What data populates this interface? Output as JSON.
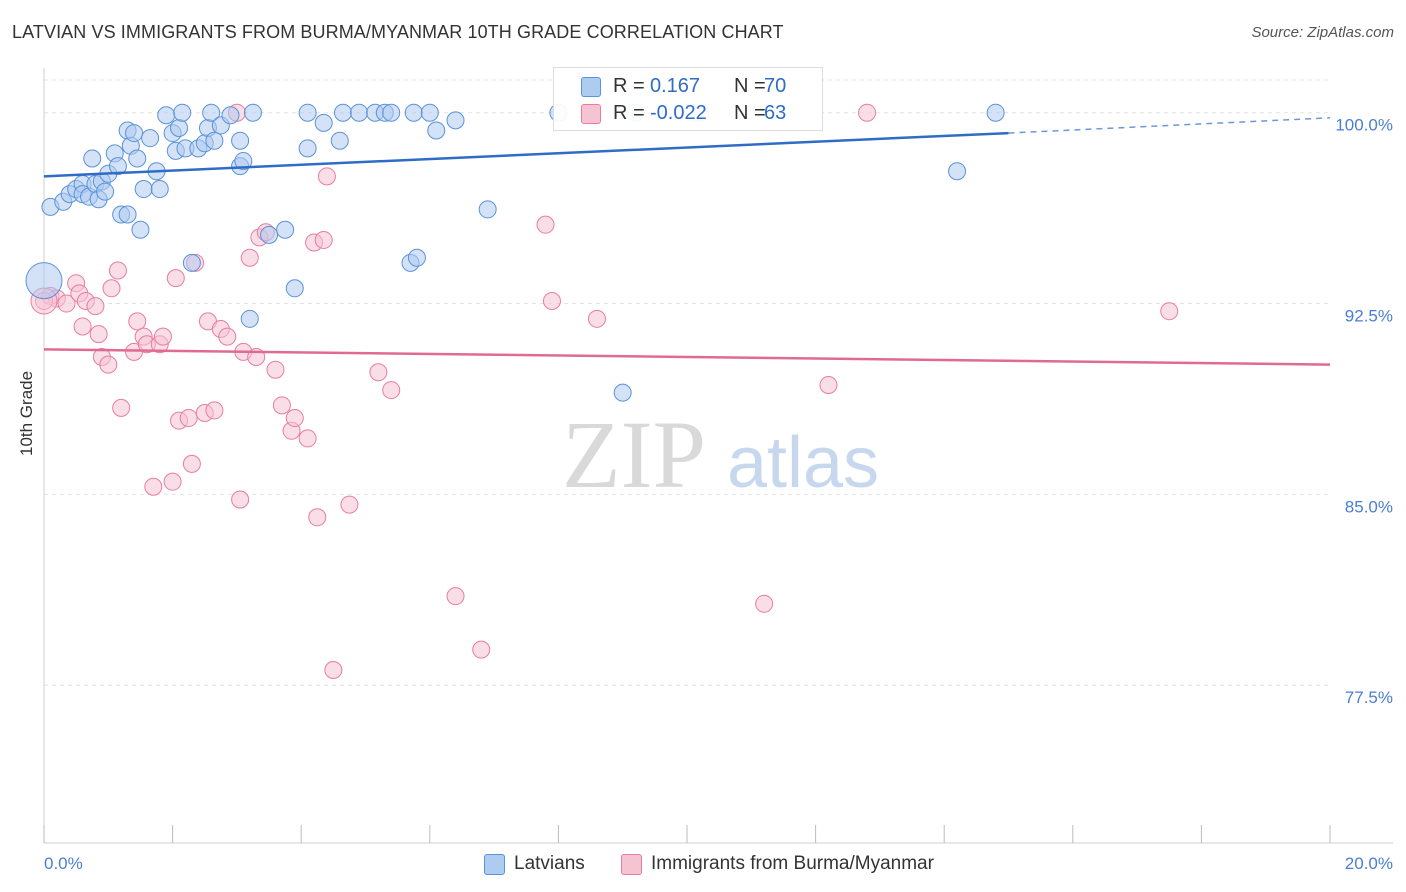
{
  "header": {
    "title": "LATVIAN VS IMMIGRANTS FROM BURMA/MYANMAR 10TH GRADE CORRELATION CHART",
    "source": "Source: ZipAtlas.com"
  },
  "colors": {
    "blue": "#5b93d8",
    "blue_fill": "#aecbf0",
    "blue_line": "#2f6cc5",
    "pink": "#e87da0",
    "pink_fill": "#f6c3d3",
    "pink_line": "#e06a93",
    "grid": "#e2e2e2",
    "tick_label": "#4a7fd0"
  },
  "legend": {
    "rows": [
      {
        "r_label": "R =",
        "r_value": "0.167",
        "n_label": "N =",
        "n_value": "70"
      },
      {
        "r_label": "R =",
        "r_value": "-0.022",
        "n_label": "N =",
        "n_value": "63"
      }
    ]
  },
  "bottom_legend": {
    "series1": "Latvians",
    "series2": "Immigrants from Burma/Myanmar"
  },
  "watermark": {
    "zip": "ZIP",
    "atlas": "atlas"
  },
  "chart_data": {
    "type": "scatter",
    "title": "LATVIAN VS IMMIGRANTS FROM BURMA/MYANMAR 10TH GRADE CORRELATION CHART",
    "xlabel": "",
    "ylabel": "10th Grade",
    "xlim": [
      0,
      20
    ],
    "ylim": [
      71.3,
      101.6
    ],
    "x_tick_labels": [
      {
        "value": 0,
        "label": "0.0%"
      },
      {
        "value": 20,
        "label": "20.0%"
      }
    ],
    "y_ticks": [
      {
        "value": 100.0,
        "label": "100.0%"
      },
      {
        "value": 92.5,
        "label": "92.5%"
      },
      {
        "value": 85.0,
        "label": "85.0%"
      },
      {
        "value": 77.5,
        "label": "77.5%"
      }
    ],
    "x_minor_ticks": [
      0,
      2,
      4,
      6,
      8,
      10,
      12,
      14,
      16,
      18,
      20
    ],
    "series": [
      {
        "name": "Latvians",
        "r": 0.167,
        "n": 70,
        "trend": {
          "x": [
            0,
            15.0
          ],
          "y": [
            97.5,
            99.2
          ],
          "dashed_to": [
            20.0,
            99.8
          ]
        },
        "points": [
          [
            0.1,
            96.3
          ],
          [
            0.3,
            96.5
          ],
          [
            0.4,
            96.8
          ],
          [
            0.5,
            97.0
          ],
          [
            0.6,
            97.2
          ],
          [
            0.6,
            96.8
          ],
          [
            0.7,
            96.7
          ],
          [
            0.75,
            98.2
          ],
          [
            0.8,
            97.2
          ],
          [
            0.85,
            96.6
          ],
          [
            0.9,
            97.3
          ],
          [
            0.95,
            96.9
          ],
          [
            1.0,
            97.6
          ],
          [
            1.1,
            98.4
          ],
          [
            1.15,
            97.9
          ],
          [
            1.2,
            96.0
          ],
          [
            1.3,
            96.0
          ],
          [
            1.3,
            99.3
          ],
          [
            1.35,
            98.7
          ],
          [
            1.4,
            99.2
          ],
          [
            1.45,
            98.2
          ],
          [
            1.5,
            95.4
          ],
          [
            1.55,
            97.0
          ],
          [
            1.65,
            99.0
          ],
          [
            1.75,
            97.7
          ],
          [
            1.8,
            97.0
          ],
          [
            1.9,
            99.9
          ],
          [
            2.0,
            99.2
          ],
          [
            2.05,
            98.5
          ],
          [
            2.1,
            99.4
          ],
          [
            2.15,
            100.0
          ],
          [
            2.2,
            98.6
          ],
          [
            2.3,
            94.1
          ],
          [
            2.4,
            98.6
          ],
          [
            2.5,
            98.8
          ],
          [
            2.55,
            99.4
          ],
          [
            2.6,
            100.0
          ],
          [
            2.65,
            98.9
          ],
          [
            2.75,
            99.5
          ],
          [
            2.9,
            99.9
          ],
          [
            3.05,
            97.9
          ],
          [
            3.05,
            98.9
          ],
          [
            3.1,
            98.1
          ],
          [
            3.2,
            91.9
          ],
          [
            3.25,
            100.0
          ],
          [
            3.5,
            95.2
          ],
          [
            3.75,
            95.4
          ],
          [
            3.9,
            93.1
          ],
          [
            4.1,
            100.0
          ],
          [
            4.1,
            98.6
          ],
          [
            4.35,
            99.6
          ],
          [
            4.6,
            98.9
          ],
          [
            4.65,
            100.0
          ],
          [
            4.9,
            100.0
          ],
          [
            5.15,
            100.0
          ],
          [
            5.3,
            100.0
          ],
          [
            5.4,
            100.0
          ],
          [
            5.75,
            100.0
          ],
          [
            5.7,
            94.1
          ],
          [
            5.8,
            94.3
          ],
          [
            6.0,
            100.0
          ],
          [
            6.1,
            99.3
          ],
          [
            6.4,
            99.7
          ],
          [
            6.9,
            96.2
          ],
          [
            8.0,
            100.0
          ],
          [
            9.0,
            89.0
          ],
          [
            9.2,
            100.0
          ],
          [
            10.2,
            100.0
          ],
          [
            14.2,
            97.7
          ],
          [
            14.8,
            100.0
          ]
        ]
      },
      {
        "name": "Immigrants from Burma/Myanmar",
        "r": -0.022,
        "n": 63,
        "trend": {
          "x": [
            0,
            20.0
          ],
          "y": [
            90.7,
            90.1
          ]
        },
        "points": [
          [
            0.1,
            92.8
          ],
          [
            0.2,
            92.7
          ],
          [
            0.35,
            92.5
          ],
          [
            0.5,
            93.3
          ],
          [
            0.55,
            92.9
          ],
          [
            0.6,
            91.6
          ],
          [
            0.65,
            92.6
          ],
          [
            0.8,
            92.4
          ],
          [
            0.85,
            91.3
          ],
          [
            0.9,
            90.4
          ],
          [
            1.0,
            90.1
          ],
          [
            1.05,
            93.1
          ],
          [
            1.15,
            93.8
          ],
          [
            1.2,
            88.4
          ],
          [
            1.4,
            90.6
          ],
          [
            1.45,
            91.8
          ],
          [
            1.55,
            91.2
          ],
          [
            1.6,
            90.9
          ],
          [
            1.7,
            85.3
          ],
          [
            1.8,
            90.9
          ],
          [
            1.85,
            91.2
          ],
          [
            2.0,
            85.5
          ],
          [
            2.05,
            93.5
          ],
          [
            2.1,
            87.9
          ],
          [
            2.25,
            88.0
          ],
          [
            2.3,
            86.2
          ],
          [
            2.35,
            94.1
          ],
          [
            2.5,
            88.2
          ],
          [
            2.55,
            91.8
          ],
          [
            2.65,
            88.3
          ],
          [
            2.75,
            91.5
          ],
          [
            2.85,
            91.2
          ],
          [
            3.0,
            100.0
          ],
          [
            3.05,
            84.8
          ],
          [
            3.1,
            90.6
          ],
          [
            3.2,
            94.3
          ],
          [
            3.3,
            90.4
          ],
          [
            3.35,
            95.1
          ],
          [
            3.45,
            95.3
          ],
          [
            3.6,
            89.9
          ],
          [
            3.7,
            88.5
          ],
          [
            3.85,
            87.5
          ],
          [
            3.9,
            88.0
          ],
          [
            4.1,
            87.2
          ],
          [
            4.2,
            94.9
          ],
          [
            4.25,
            84.1
          ],
          [
            4.35,
            95.0
          ],
          [
            4.4,
            97.5
          ],
          [
            4.5,
            78.1
          ],
          [
            4.75,
            84.6
          ],
          [
            5.2,
            89.8
          ],
          [
            5.4,
            89.1
          ],
          [
            6.4,
            81.0
          ],
          [
            6.8,
            78.9
          ],
          [
            7.8,
            95.6
          ],
          [
            7.9,
            92.6
          ],
          [
            8.6,
            91.9
          ],
          [
            10.1,
            100.0
          ],
          [
            11.2,
            80.7
          ],
          [
            12.2,
            89.3
          ],
          [
            12.8,
            100.0
          ],
          [
            17.5,
            92.2
          ],
          [
            0.0,
            92.6
          ]
        ]
      }
    ]
  }
}
